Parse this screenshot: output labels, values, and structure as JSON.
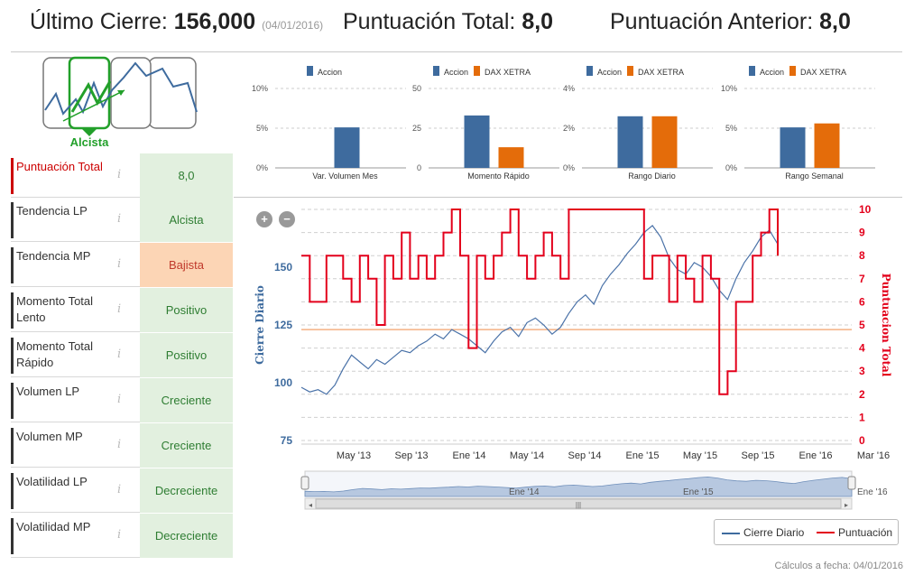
{
  "header": {
    "last_close_label": "Último Cierre:",
    "last_close_value": "156,000",
    "last_close_date": "(04/01/2016)",
    "total_score_label": "Puntuación Total:",
    "total_score_value": "8,0",
    "prev_score_label": "Puntuación Anterior:",
    "prev_score_value": "8,0"
  },
  "trend": {
    "label": "Alcista",
    "color": "#22a02a"
  },
  "indicators": [
    {
      "label": "Puntuación Total",
      "value": "8,0",
      "status": "total"
    },
    {
      "label": "Tendencia LP",
      "value": "Alcista",
      "status": "pos"
    },
    {
      "label": "Tendencia MP",
      "value": "Bajista",
      "status": "neg"
    },
    {
      "label": "Momento Total Lento",
      "value": "Positivo",
      "status": "pos"
    },
    {
      "label": "Momento Total Rápido",
      "value": "Positivo",
      "status": "pos"
    },
    {
      "label": "Volumen LP",
      "value": "Creciente",
      "status": "pos"
    },
    {
      "label": "Volumen MP",
      "value": "Creciente",
      "status": "pos"
    },
    {
      "label": "Volatilidad LP",
      "value": "Decreciente",
      "status": "pos"
    },
    {
      "label": "Volatilidad MP",
      "value": "Decreciente",
      "status": "pos"
    }
  ],
  "info_glyph": "i",
  "colors": {
    "accion": "#3e6b9e",
    "dax": "#e46c0a",
    "score_line": "#e3001b",
    "pos_bg": "#e2f0df",
    "neg_bg": "#fcd5b5"
  },
  "chart_data": [
    {
      "type": "bar",
      "title": "Var. Volumen Mes",
      "series": [
        {
          "name": "Accion",
          "values": [
            5.1
          ]
        }
      ],
      "ylim": [
        0,
        10
      ],
      "ticks": [
        "0%",
        "5%",
        "10%"
      ]
    },
    {
      "type": "bar",
      "title": "Momento Rápido",
      "series": [
        {
          "name": "Accion",
          "values": [
            33
          ]
        },
        {
          "name": "DAX XETRA",
          "values": [
            13
          ]
        }
      ],
      "ylim": [
        0,
        50
      ],
      "ticks": [
        "0",
        "25",
        "50"
      ]
    },
    {
      "type": "bar",
      "title": "Rango Diario",
      "series": [
        {
          "name": "Accion",
          "values": [
            2.6
          ]
        },
        {
          "name": "DAX XETRA",
          "values": [
            2.6
          ]
        }
      ],
      "ylim": [
        0,
        4
      ],
      "ticks": [
        "0%",
        "2%",
        "4%"
      ]
    },
    {
      "type": "bar",
      "title": "Rango Semanal",
      "series": [
        {
          "name": "Accion",
          "values": [
            5.1
          ]
        },
        {
          "name": "DAX XETRA",
          "values": [
            5.6
          ]
        }
      ],
      "ylim": [
        0,
        10
      ],
      "ticks": [
        "0%",
        "5%",
        "10%"
      ]
    },
    {
      "type": "line",
      "title": "",
      "ylabel_left": "Cierre Diario",
      "ylabel_right": "Puntuacion Total",
      "y_left_ticks": [
        "75",
        "100",
        "125",
        "150"
      ],
      "y_left_lim": [
        75,
        175
      ],
      "y_right_ticks": [
        "0",
        "1",
        "2",
        "3",
        "4",
        "5",
        "6",
        "7",
        "8",
        "9",
        "10"
      ],
      "y_right_lim": [
        0,
        10
      ],
      "x_ticks": [
        "May '13",
        "Sep '13",
        "Ene '14",
        "May '14",
        "Sep '14",
        "Ene '15",
        "May '15",
        "Sep '15",
        "Ene '16",
        "Mar '16"
      ],
      "reference_level": 4.8,
      "series": [
        {
          "name": "Cierre Diario",
          "values": [
            98,
            96,
            97,
            95,
            99,
            106,
            112,
            109,
            106,
            110,
            108,
            111,
            114,
            113,
            116,
            118,
            121,
            119,
            123,
            121,
            119,
            116,
            113,
            118,
            122,
            124,
            120,
            126,
            128,
            125,
            121,
            124,
            130,
            135,
            138,
            134,
            142,
            147,
            151,
            156,
            160,
            165,
            168,
            163,
            154,
            149,
            147,
            152,
            150,
            146,
            140,
            136,
            145,
            152,
            157,
            163,
            166,
            160
          ]
        },
        {
          "name": "Puntuación",
          "values": [
            8,
            6,
            6,
            8,
            8,
            7,
            6,
            8,
            7,
            5,
            8,
            7,
            9,
            7,
            8,
            7,
            8,
            9,
            10,
            8,
            4,
            8,
            7,
            8,
            9,
            10,
            8,
            7,
            8,
            9,
            8,
            7,
            10,
            10,
            10,
            10,
            10,
            10,
            10,
            10,
            10,
            7,
            8,
            8,
            6,
            8,
            7,
            6,
            8,
            7,
            2,
            3,
            6,
            6,
            8,
            9,
            10,
            8
          ]
        }
      ]
    }
  ],
  "navigator": {
    "labels": [
      "Ene '14",
      "Ene '15",
      "Ene '16"
    ],
    "scroll_grip": "|||"
  },
  "legend": {
    "close_label": "Cierre Diario",
    "score_label": "Puntuación"
  },
  "footer": "Cálculos a fecha: 04/01/2016"
}
